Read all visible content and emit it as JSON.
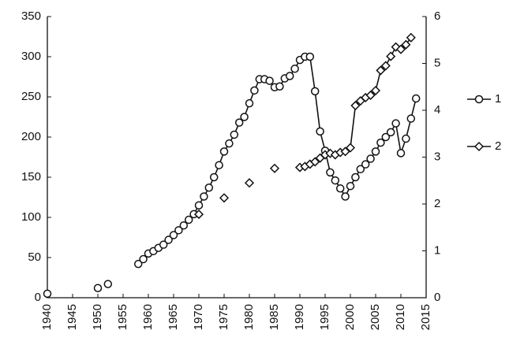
{
  "chart_data": {
    "type": "line",
    "xlim": [
      1940,
      2015
    ],
    "xticks": [
      1940,
      1945,
      1950,
      1955,
      1960,
      1965,
      1970,
      1975,
      1980,
      1985,
      1990,
      1995,
      2000,
      2005,
      2010,
      2015
    ],
    "ylim": [
      0,
      350
    ],
    "yticks": [
      0,
      50,
      100,
      150,
      200,
      250,
      300,
      350
    ],
    "y2lim": [
      0,
      6
    ],
    "y2ticks": [
      0,
      1,
      2,
      3,
      4,
      5,
      6
    ],
    "legend": "right",
    "series": [
      {
        "name": "1",
        "marker": "circle",
        "color": "#111111",
        "x": [
          1940,
          1945,
          1950,
          1951,
          1952,
          1955,
          1958,
          1959,
          1960,
          1961,
          1962,
          1963,
          1964,
          1965,
          1966,
          1967,
          1968,
          1969,
          1970,
          1971,
          1972,
          1973,
          1974,
          1975,
          1976,
          1977,
          1978,
          1979,
          1980,
          1981,
          1982,
          1983,
          1984,
          1985,
          1986,
          1987,
          1988,
          1989,
          1990,
          1991,
          1992,
          1993,
          1994,
          1995,
          1996,
          1997,
          1998,
          1999,
          2000,
          2001,
          2002,
          2003,
          2004,
          2005,
          2006,
          2007,
          2008,
          2009,
          2010,
          2011,
          2012,
          2013
        ],
        "values": [
          5,
          null,
          12,
          null,
          17,
          null,
          42,
          48,
          55,
          58,
          62,
          66,
          72,
          78,
          84,
          90,
          97,
          104,
          115,
          126,
          137,
          150,
          165,
          182,
          192,
          203,
          218,
          225,
          242,
          258,
          272,
          272,
          270,
          262,
          263,
          273,
          276,
          285,
          296,
          300,
          300,
          257,
          207,
          183,
          156,
          146,
          136,
          126,
          139,
          150,
          160,
          166,
          173,
          182,
          193,
          200,
          206,
          217,
          180,
          198,
          223,
          248
        ]
      },
      {
        "name": "2",
        "marker": "diamond",
        "color": "#111111",
        "axis": "y2",
        "x": [
          1970,
          1972,
          1975,
          1977,
          1980,
          1982,
          1985,
          1987,
          1990,
          1991,
          1992,
          1993,
          1994,
          1995,
          1996,
          1997,
          1998,
          1999,
          2000,
          2001,
          2002,
          2003,
          2004,
          2005,
          2006,
          2007,
          2008,
          2009,
          2010,
          2011,
          2012
        ],
        "values": [
          1.78,
          null,
          2.13,
          null,
          2.45,
          null,
          2.76,
          null,
          2.78,
          2.8,
          2.85,
          2.9,
          2.98,
          3.05,
          3.08,
          3.05,
          3.1,
          3.12,
          3.2,
          4.1,
          4.2,
          4.27,
          4.32,
          4.42,
          4.85,
          4.95,
          5.15,
          5.35,
          5.3,
          5.4,
          5.55
        ]
      }
    ]
  }
}
